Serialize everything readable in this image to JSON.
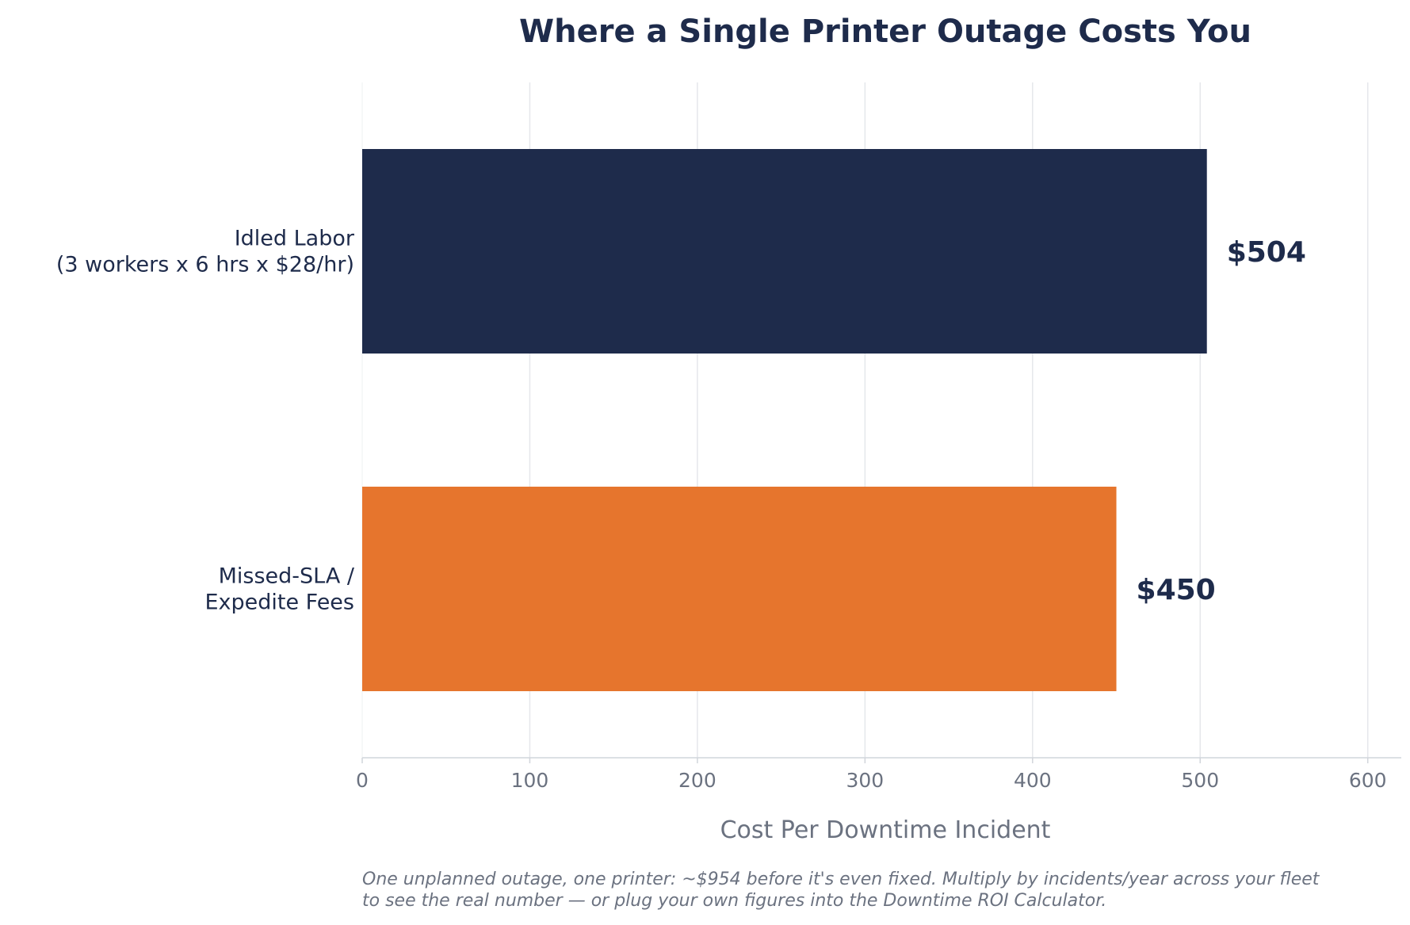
{
  "chart_data": {
    "type": "bar",
    "orientation": "horizontal",
    "title": "Where a Single Printer Outage Costs You",
    "xlabel": "Cost Per Downtime Incident",
    "ylabel": "",
    "xlim": [
      0,
      620
    ],
    "x_ticks": [
      0,
      100,
      200,
      300,
      400,
      500,
      600
    ],
    "x_tick_labels": [
      "0",
      "100",
      "200",
      "300",
      "400",
      "500",
      "600"
    ],
    "grid": "vertical",
    "categories": [
      [
        "Idled Labor",
        "(3 workers x 6 hrs x $28/hr)"
      ],
      [
        "Missed-SLA /",
        "Expedite Fees"
      ]
    ],
    "values": [
      504,
      450
    ],
    "value_labels": [
      "$504",
      "$450"
    ],
    "bar_colors": [
      "#1e2b4b",
      "#e6752d"
    ],
    "footnote": [
      "One unplanned outage, one printer: ~$954 before it's even fixed. Multiply by incidents/year across your fleet",
      "to see the real number — or plug your own figures into the Downtime ROI Calculator."
    ]
  },
  "colors": {
    "text_dark": "#1e2b4b",
    "text_muted": "#6b7280",
    "grid": "#e5e7eb",
    "axis": "#d1d5db"
  }
}
